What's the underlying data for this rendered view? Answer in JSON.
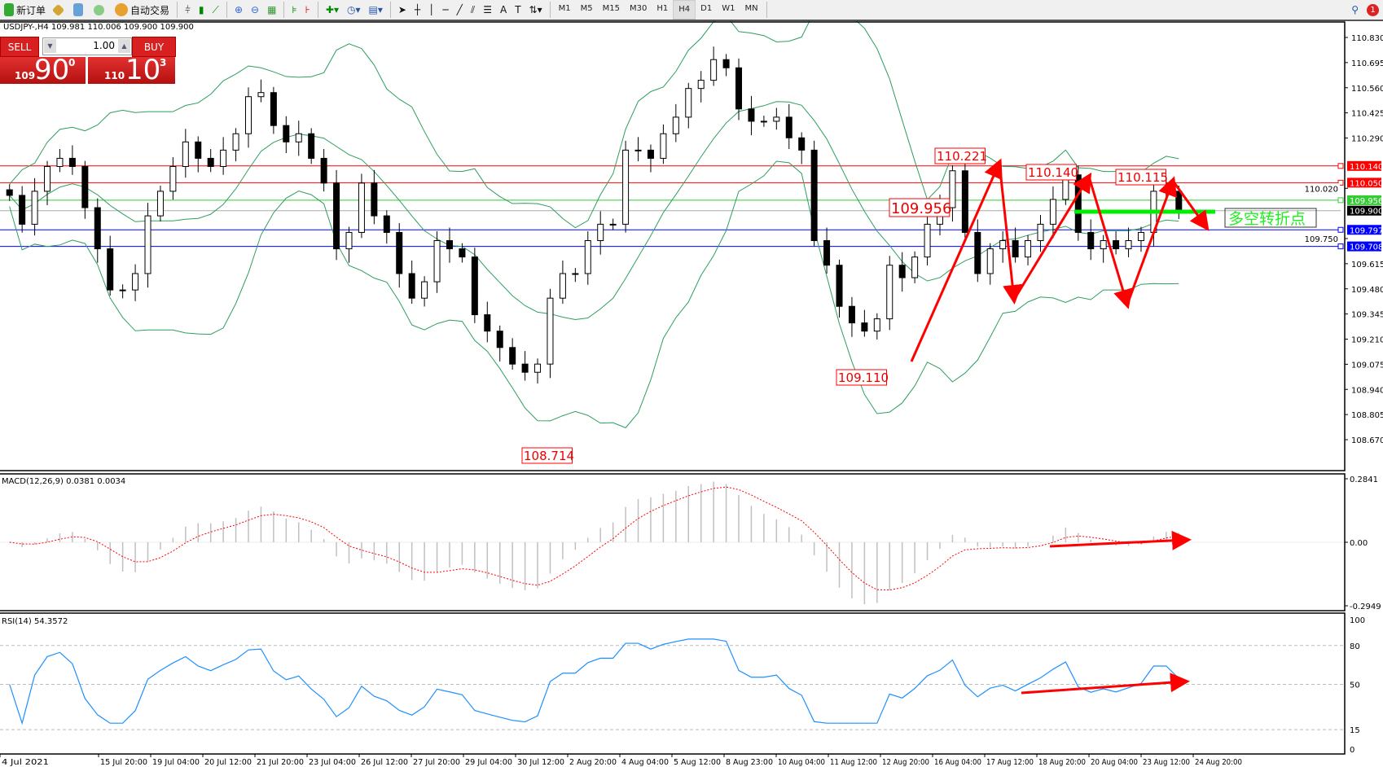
{
  "toolbar": {
    "new_order": "新订单",
    "auto_trading": "自动交易",
    "timeframes": [
      "M1",
      "M5",
      "M15",
      "M30",
      "H1",
      "H4",
      "D1",
      "W1",
      "MN"
    ],
    "active_timeframe": "H4",
    "notification_count": "1"
  },
  "chart_info": {
    "symbol": "USDJPY-,H4",
    "ohlc": "109.981 110.006 109.900 109.900"
  },
  "trade_panel": {
    "sell_label": "SELL",
    "buy_label": "BUY",
    "lot": "1.00",
    "sell_price_small": "109",
    "sell_price_big": "90",
    "sell_price_sup": "0",
    "buy_price_small": "110",
    "buy_price_big": "10",
    "buy_price_sup": "3"
  },
  "price_axis": [
    "110.830",
    "110.695",
    "110.560",
    "110.425",
    "110.290",
    "110.020",
    "109.750",
    "109.615",
    "109.480",
    "109.345",
    "109.210",
    "109.075",
    "108.940",
    "108.805",
    "108.670"
  ],
  "levels": [
    {
      "price": 110.14,
      "label": "110.140",
      "color": "#ff0000"
    },
    {
      "price": 110.05,
      "label": "110.050",
      "color": "#ff0000"
    },
    {
      "price": 109.956,
      "label": "109.956",
      "color": "#33cc33"
    },
    {
      "price": 109.9,
      "label": "109.900",
      "color": "#000000"
    },
    {
      "price": 109.797,
      "label": "109.797",
      "color": "#0000ff"
    },
    {
      "price": 109.708,
      "label": "109.708",
      "color": "#0000ff"
    }
  ],
  "annotations": {
    "labels": [
      "110.221",
      "110.140",
      "110.115",
      "109.956",
      "109.110",
      "108.714"
    ],
    "pivot_text": "多空转折点"
  },
  "closes": [
    109.982,
    109.827,
    110.004,
    110.137,
    110.181,
    110.137,
    109.916,
    109.695,
    109.474,
    109.474,
    109.562,
    109.872,
    110.004,
    110.137,
    110.269,
    110.181,
    110.137,
    110.225,
    110.313,
    110.512,
    110.534,
    110.357,
    110.269,
    110.313,
    110.181,
    110.048,
    109.695,
    109.783,
    110.048,
    109.872,
    109.783,
    109.562,
    109.43,
    109.518,
    109.739,
    109.695,
    109.651,
    109.341,
    109.253,
    109.165,
    109.076,
    109.032,
    109.076,
    109.43,
    109.562,
    109.562,
    109.739,
    109.827,
    109.827,
    110.225,
    110.225,
    110.181,
    110.313,
    110.402,
    110.556,
    110.6,
    110.711,
    110.667,
    110.446,
    110.38,
    110.38,
    110.402,
    110.291,
    110.225,
    109.739,
    109.607,
    109.386,
    109.297,
    109.253,
    109.319,
    109.607,
    109.54,
    109.651,
    109.827,
    109.916,
    110.114,
    109.783,
    109.562,
    109.695,
    109.739,
    109.651,
    109.739,
    109.827,
    109.96,
    110.092,
    109.783,
    109.695,
    109.739,
    109.695,
    109.739,
    109.783,
    110.004,
    110.004,
    109.9
  ],
  "macd": {
    "label": "MACD(12,26,9) 0.0381 0.0034",
    "axis": [
      "0.2841",
      "0.00",
      "-0.2949"
    ]
  },
  "rsi": {
    "label": "RSI(14) 54.3572",
    "axis": [
      "100",
      "80",
      "50",
      "15",
      "0"
    ]
  },
  "time_axis": [
    "4 Jul 2021",
    "15 Jul 20:00",
    "19 Jul 04:00",
    "20 Jul 12:00",
    "21 Jul 20:00",
    "23 Jul 04:00",
    "26 Jul 12:00",
    "27 Jul 20:00",
    "29 Jul 04:00",
    "30 Jul 12:00",
    "2 Aug 20:00",
    "4 Aug 04:00",
    "5 Aug 12:00",
    "8 Aug 23:00",
    "10 Aug 04:00",
    "11 Aug 12:00",
    "12 Aug 20:00",
    "16 Aug 04:00",
    "17 Aug 12:00",
    "18 Aug 20:00",
    "20 Aug 04:00",
    "23 Aug 12:00",
    "24 Aug 20:00"
  ],
  "colors": {
    "bollinger": "#2e9e5e",
    "macd_hist": "#c0c0c0",
    "macd_signal": "#ff0000",
    "rsi": "#1e90ff",
    "arrows": "#ff0000",
    "pivot_line": "#00ee00"
  }
}
